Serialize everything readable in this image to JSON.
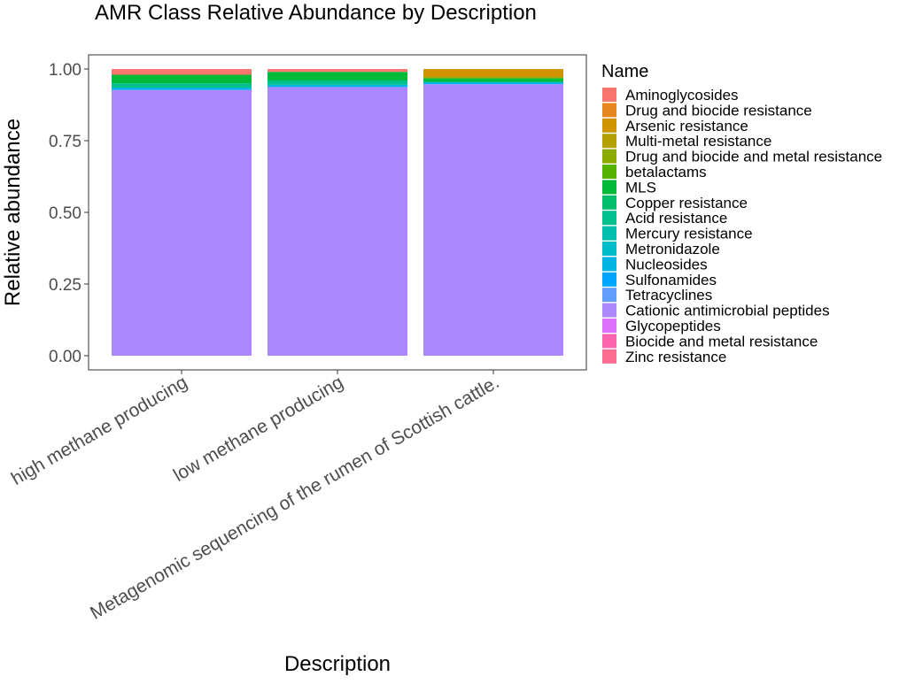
{
  "chart_data": {
    "type": "bar",
    "stacked": true,
    "title": "AMR Class Relative Abundance by Description",
    "xlabel": "Description",
    "ylabel": "Relative abundance",
    "ylim": [
      0,
      1.05
    ],
    "yticks": [
      "0.00",
      "0.25",
      "0.50",
      "0.75",
      "1.00"
    ],
    "ytick_values": [
      0,
      0.25,
      0.5,
      0.75,
      1.0
    ],
    "grid": false,
    "legend_title": "Name",
    "legend_position": "right",
    "categories": [
      "high methane producing",
      "low methane producing",
      "Metagenomic sequencing of the rumen of Scottish cattle."
    ],
    "series": [
      {
        "name": "Aminoglycosides",
        "color": "#F8766D",
        "values": [
          0.02,
          0.01,
          0.0
        ]
      },
      {
        "name": "Drug and biocide resistance",
        "color": "#E7851E",
        "values": [
          0.0,
          0.0,
          0.0
        ]
      },
      {
        "name": "Arsenic resistance",
        "color": "#D09400",
        "values": [
          0.0,
          0.0,
          0.028
        ]
      },
      {
        "name": "Multi-metal resistance",
        "color": "#B2A100",
        "values": [
          0.0,
          0.0,
          0.0
        ]
      },
      {
        "name": "Drug and biocide and metal resistance",
        "color": "#8BAB00",
        "values": [
          0.0,
          0.0,
          0.004
        ]
      },
      {
        "name": "betalactams",
        "color": "#55B300",
        "values": [
          0.0,
          0.0,
          0.0
        ]
      },
      {
        "name": "MLS",
        "color": "#00BA38",
        "values": [
          0.03,
          0.03,
          0.013
        ]
      },
      {
        "name": "Copper resistance",
        "color": "#00BE6C",
        "values": [
          0.0,
          0.0,
          0.0
        ]
      },
      {
        "name": "Acid resistance",
        "color": "#00C08E",
        "values": [
          0.015,
          0.015,
          0.0
        ]
      },
      {
        "name": "Mercury resistance",
        "color": "#00BFAC",
        "values": [
          0.0,
          0.0,
          0.0
        ]
      },
      {
        "name": "Metronidazole",
        "color": "#00BBC8",
        "values": [
          0.0,
          0.0,
          0.0
        ]
      },
      {
        "name": "Nucleosides",
        "color": "#00B4E4",
        "values": [
          0.008,
          0.008,
          0.008
        ]
      },
      {
        "name": "Sulfonamides",
        "color": "#00A5FF",
        "values": [
          0.0,
          0.0,
          0.0
        ]
      },
      {
        "name": "Tetracyclines",
        "color": "#619CFF",
        "values": [
          0.0,
          0.0,
          0.0
        ]
      },
      {
        "name": "Cationic antimicrobial peptides",
        "color": "#AC88FF",
        "values": [
          0.927,
          0.937,
          0.947
        ]
      },
      {
        "name": "Glycopeptides",
        "color": "#DE71F9",
        "values": [
          0.0,
          0.0,
          0.0
        ]
      },
      {
        "name": "Biocide and metal resistance",
        "color": "#FF64B0",
        "values": [
          0.0,
          0.0,
          0.0
        ]
      },
      {
        "name": "Zinc resistance",
        "color": "#FF6C91",
        "values": [
          0.0,
          0.0,
          0.0
        ]
      }
    ]
  }
}
